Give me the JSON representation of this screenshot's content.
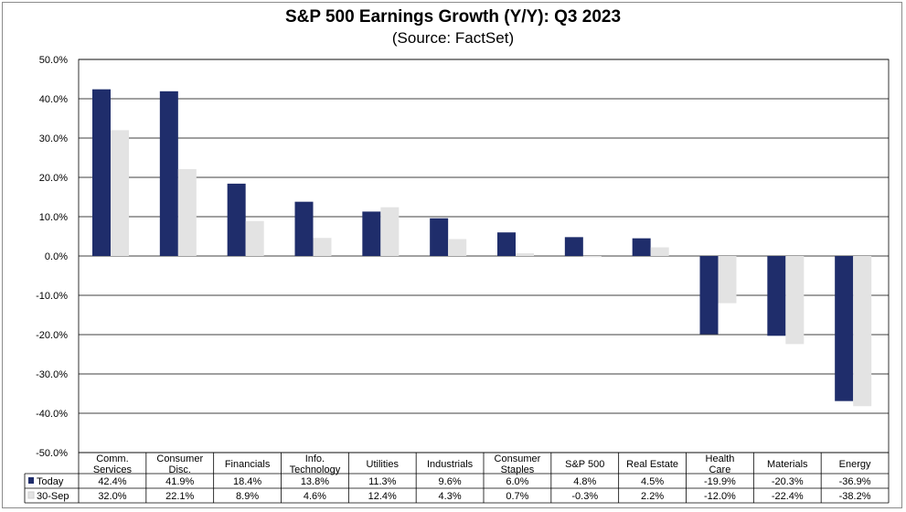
{
  "chart_data": {
    "type": "bar",
    "title": "S&P 500 Earnings Growth (Y/Y): Q3 2023",
    "subtitle": "(Source: FactSet)",
    "categories": [
      [
        "Comm.",
        "Services"
      ],
      [
        "Consumer",
        "Disc."
      ],
      [
        "Financials"
      ],
      [
        "Info.",
        "Technology"
      ],
      [
        "Utilities"
      ],
      [
        "Industrials"
      ],
      [
        "Consumer",
        "Staples"
      ],
      [
        "S&P 500"
      ],
      [
        "Real Estate"
      ],
      [
        "Health",
        "Care"
      ],
      [
        "Materials"
      ],
      [
        "Energy"
      ]
    ],
    "series": [
      {
        "name": "Today",
        "color": "#1f2d6b",
        "values": [
          42.4,
          41.9,
          18.4,
          13.8,
          11.3,
          9.6,
          6.0,
          4.8,
          4.5,
          -19.9,
          -20.3,
          -36.9
        ],
        "labels": [
          "42.4%",
          "41.9%",
          "18.4%",
          "13.8%",
          "11.3%",
          "9.6%",
          "6.0%",
          "4.8%",
          "4.5%",
          "-19.9%",
          "-20.3%",
          "-36.9%"
        ]
      },
      {
        "name": "30-Sep",
        "color": "#e3e3e3",
        "values": [
          32.0,
          22.1,
          8.9,
          4.6,
          12.4,
          4.3,
          0.7,
          -0.3,
          2.2,
          -12.0,
          -22.4,
          -38.2
        ],
        "labels": [
          "32.0%",
          "22.1%",
          "8.9%",
          "4.6%",
          "12.4%",
          "4.3%",
          "0.7%",
          "-0.3%",
          "2.2%",
          "-12.0%",
          "-22.4%",
          "-38.2%"
        ]
      }
    ],
    "ylim": [
      -50,
      50
    ],
    "yticks": [
      50,
      40,
      30,
      20,
      10,
      0,
      -10,
      -20,
      -30,
      -40,
      -50
    ],
    "ytick_labels": [
      "50.0%",
      "40.0%",
      "30.0%",
      "20.0%",
      "10.0%",
      "0.0%",
      "-10.0%",
      "-20.0%",
      "-30.0%",
      "-40.0%",
      "-50.0%"
    ],
    "grid": true,
    "legend": "data-table"
  }
}
